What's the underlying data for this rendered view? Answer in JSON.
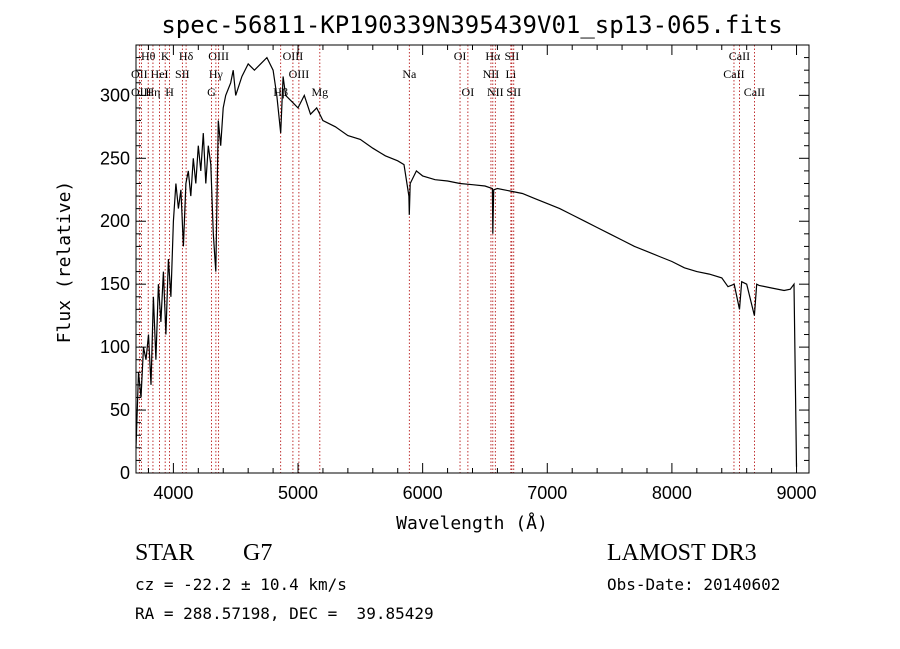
{
  "chart_data": {
    "type": "line",
    "title": "spec-56811-KP190339N395439V01_sp13-065.fits",
    "xlabel": "Wavelength (Å)",
    "ylabel": "Flux (relative)",
    "xlim": [
      3700,
      9100
    ],
    "ylim": [
      0,
      340
    ],
    "xticks": [
      4000,
      5000,
      6000,
      7000,
      8000,
      9000
    ],
    "yticks": [
      0,
      50,
      100,
      150,
      200,
      250,
      300
    ],
    "xtick_labels": [
      "4000",
      "5000",
      "6000",
      "7000",
      "8000",
      "9000"
    ],
    "ytick_labels": [
      "0",
      "50",
      "100",
      "150",
      "200",
      "250",
      "300"
    ],
    "grid": false,
    "series": [
      {
        "name": "spectrum",
        "x": [
          3700,
          3720,
          3740,
          3760,
          3780,
          3800,
          3820,
          3840,
          3860,
          3880,
          3900,
          3920,
          3940,
          3960,
          3980,
          4000,
          4020,
          4040,
          4060,
          4080,
          4100,
          4120,
          4140,
          4160,
          4180,
          4200,
          4220,
          4240,
          4260,
          4280,
          4300,
          4320,
          4340,
          4360,
          4380,
          4400,
          4420,
          4440,
          4460,
          4480,
          4500,
          4550,
          4600,
          4650,
          4700,
          4750,
          4800,
          4830,
          4861,
          4880,
          4900,
          4950,
          5000,
          5050,
          5100,
          5150,
          5200,
          5300,
          5400,
          5500,
          5600,
          5700,
          5800,
          5850,
          5890,
          5893,
          5900,
          5950,
          6000,
          6100,
          6200,
          6300,
          6400,
          6500,
          6560,
          6563,
          6570,
          6600,
          6700,
          6800,
          6900,
          7000,
          7100,
          7200,
          7300,
          7400,
          7500,
          7600,
          7700,
          7800,
          7900,
          8000,
          8100,
          8200,
          8300,
          8400,
          8450,
          8500,
          8542,
          8560,
          8600,
          8662,
          8680,
          8700,
          8800,
          8900,
          8950,
          8980,
          8995,
          9000
        ],
        "y": [
          20,
          80,
          60,
          100,
          90,
          110,
          70,
          140,
          90,
          150,
          120,
          160,
          110,
          170,
          140,
          200,
          230,
          210,
          225,
          180,
          230,
          240,
          220,
          250,
          230,
          260,
          240,
          270,
          230,
          260,
          245,
          190,
          160,
          280,
          260,
          290,
          300,
          305,
          310,
          320,
          300,
          315,
          325,
          320,
          325,
          330,
          320,
          300,
          270,
          315,
          300,
          295,
          290,
          300,
          285,
          290,
          280,
          275,
          268,
          265,
          258,
          252,
          248,
          245,
          220,
          205,
          230,
          240,
          236,
          233,
          232,
          230,
          229,
          228,
          226,
          190,
          225,
          226,
          224,
          222,
          218,
          214,
          210,
          205,
          200,
          195,
          190,
          185,
          180,
          176,
          172,
          168,
          163,
          160,
          158,
          155,
          148,
          150,
          130,
          152,
          150,
          125,
          150,
          149,
          147,
          145,
          146,
          150,
          40,
          5
        ]
      }
    ],
    "line_annotations": [
      {
        "label": "Hθ",
        "wavelength": 3798,
        "row": 0
      },
      {
        "label": "OII",
        "wavelength": 3727,
        "row": 1
      },
      {
        "label": "OIII",
        "wavelength": 3743,
        "row": 2
      },
      {
        "label": "K",
        "wavelength": 3934,
        "row": 0
      },
      {
        "label": "HeI",
        "wavelength": 3889,
        "row": 1
      },
      {
        "label": "Hη",
        "wavelength": 3836,
        "row": 2
      },
      {
        "label": "Hδ",
        "wavelength": 4102,
        "row": 0
      },
      {
        "label": "SII",
        "wavelength": 4072,
        "row": 1
      },
      {
        "label": "H",
        "wavelength": 3969,
        "row": 2
      },
      {
        "label": "OIII",
        "wavelength": 4363,
        "row": 0
      },
      {
        "label": "Hγ",
        "wavelength": 4341,
        "row": 1
      },
      {
        "label": "G",
        "wavelength": 4305,
        "row": 2
      },
      {
        "label": "OIII",
        "wavelength": 4959,
        "row": 0
      },
      {
        "label": "OIII",
        "wavelength": 5007,
        "row": 1
      },
      {
        "label": "Hβ",
        "wavelength": 4861,
        "row": 2
      },
      {
        "label": "Mg",
        "wavelength": 5175,
        "row": 2
      },
      {
        "label": "Na",
        "wavelength": 5893,
        "row": 1
      },
      {
        "label": "OI",
        "wavelength": 6300,
        "row": 0
      },
      {
        "label": "OI",
        "wavelength": 6363,
        "row": 2
      },
      {
        "label": "Hα",
        "wavelength": 6563,
        "row": 0
      },
      {
        "label": "SII",
        "wavelength": 6716,
        "row": 0
      },
      {
        "label": "NII",
        "wavelength": 6548,
        "row": 1
      },
      {
        "label": "Li",
        "wavelength": 6708,
        "row": 1
      },
      {
        "label": "NII",
        "wavelength": 6583,
        "row": 2
      },
      {
        "label": "SII",
        "wavelength": 6731,
        "row": 2
      },
      {
        "label": "CaII",
        "wavelength": 8542,
        "row": 0
      },
      {
        "label": "CaII",
        "wavelength": 8498,
        "row": 1
      },
      {
        "label": "CaII",
        "wavelength": 8662,
        "row": 2
      }
    ]
  },
  "info": {
    "object_class": "STAR",
    "subclass": "G7",
    "survey": "LAMOST DR3",
    "cz": "cz = -22.2 ± 10.4 km/s",
    "obs_date": "Obs-Date: 20140602",
    "coords": "RA = 288.57198, DEC =  39.85429"
  },
  "colors": {
    "line": "#000000",
    "annotation": "#b00000",
    "axis": "#000000"
  }
}
